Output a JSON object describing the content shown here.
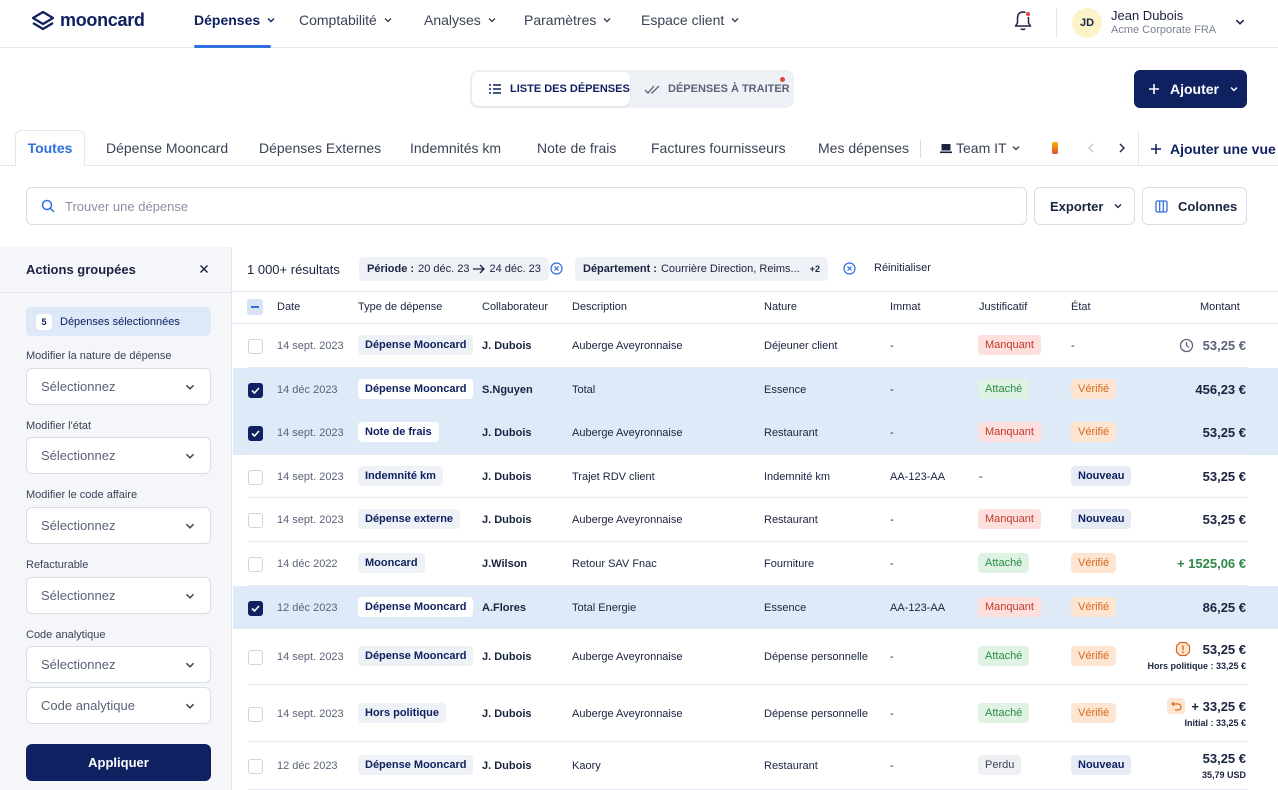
{
  "brand": {
    "name": "mooncard"
  },
  "nav": {
    "items": [
      "Dépenses",
      "Comptabilité",
      "Analyses",
      "Paramètres",
      "Espace client"
    ],
    "active": "Dépenses"
  },
  "user": {
    "initials": "JD",
    "name": "Jean Dubois",
    "company": "Acme Corporate FRA"
  },
  "view_toggle": {
    "list": "LISTE DES DÉPENSES",
    "todo": "DÉPENSES À TRAITER"
  },
  "add_button": "Ajouter",
  "tabs": [
    "Toutes",
    "Dépense Mooncard",
    "Dépenses Externes",
    "Indemnités km",
    "Note de frais",
    "Factures fournisseurs",
    "Mes dépenses",
    "Team IT"
  ],
  "add_view": "Ajouter une vue",
  "search": {
    "placeholder": "Trouver une dépense",
    "value": ""
  },
  "export_button": "Exporter",
  "columns_button": "Colonnes",
  "sidebar": {
    "title": "Actions groupées",
    "selected_count": "5",
    "selected_label": "Dépenses sélectionnées",
    "fields": [
      {
        "label": "Modifier la nature de dépense",
        "value": "Sélectionnez"
      },
      {
        "label": "Modifier l'état",
        "value": "Sélectionnez"
      },
      {
        "label": "Modifier le code affaire",
        "value": "Sélectionnez"
      },
      {
        "label": "Refacturable",
        "value": "Sélectionnez"
      },
      {
        "label": "Code analytique",
        "value": "Sélectionnez"
      }
    ],
    "extra_select": "Code analytique",
    "apply": "Appliquer"
  },
  "filters": {
    "results": "1 000+ résultats",
    "period_label": "Période :",
    "period_from": "20 déc. 23",
    "period_to": "24 déc. 23",
    "dept_label": "Département :",
    "dept_value": "Courrière Direction, Reims...",
    "dept_more": "+2",
    "reset": "Réinitialiser"
  },
  "table": {
    "headers": {
      "date": "Date",
      "type": "Type de dépense",
      "collab": "Collaborateur",
      "desc": "Description",
      "nature": "Nature",
      "immat": "Immat",
      "justif": "Justificatif",
      "etat": "État",
      "montant": "Montant"
    },
    "rows": [
      {
        "checked": false,
        "date": "14 sept. 2023",
        "type": "Dépense Mooncard",
        "collab": "J. Dubois",
        "desc": "Auberge Aveyronnaise",
        "nature": "Déjeuner client",
        "immat": "-",
        "justif": "Manquant",
        "justif_kind": "red",
        "etat": "-",
        "etat_kind": "",
        "amount": "53,25 €",
        "amount_color": "#5b6378",
        "amount_icon": "clock",
        "sub": ""
      },
      {
        "checked": true,
        "date": "14 déc 2023",
        "type": "Dépense Mooncard",
        "collab": "S.Nguyen",
        "desc": "Total",
        "nature": "Essence",
        "immat": "-",
        "justif": "Attaché",
        "justif_kind": "green",
        "etat": "Vérifié",
        "etat_kind": "orange",
        "amount": "456,23 €",
        "amount_color": "#1a2340",
        "amount_icon": "",
        "sub": ""
      },
      {
        "checked": true,
        "date": "14 sept. 2023",
        "type": "Note de frais",
        "collab": "J. Dubois",
        "desc": "Auberge Aveyronnaise",
        "nature": "Restaurant",
        "immat": "-",
        "justif": "Manquant",
        "justif_kind": "red",
        "etat": "Vérifié",
        "etat_kind": "orange",
        "amount": "53,25 €",
        "amount_color": "#1a2340",
        "amount_icon": "",
        "sub": ""
      },
      {
        "checked": false,
        "date": "14 sept. 2023",
        "type": "Indemnité km",
        "collab": "J. Dubois",
        "desc": "Trajet RDV client",
        "nature": "Indemnité km",
        "immat": "AA-123-AA",
        "justif": "-",
        "justif_kind": "",
        "etat": "Nouveau",
        "etat_kind": "navy",
        "amount": "53,25 €",
        "amount_color": "#1a2340",
        "amount_icon": "",
        "sub": ""
      },
      {
        "checked": false,
        "date": "14 sept. 2023",
        "type": "Dépense externe",
        "collab": "J. Dubois",
        "desc": "Auberge Aveyronnaise",
        "nature": "Restaurant",
        "immat": "-",
        "justif": "Manquant",
        "justif_kind": "red",
        "etat": "Nouveau",
        "etat_kind": "navy",
        "amount": "53,25 €",
        "amount_color": "#1a2340",
        "amount_icon": "",
        "sub": ""
      },
      {
        "checked": false,
        "date": "14 déc 2022",
        "type": "Mooncard",
        "collab": "J.Wilson",
        "desc": "Retour SAV Fnac",
        "nature": "Fourniture",
        "immat": "-",
        "justif": "Attaché",
        "justif_kind": "green",
        "etat": "Vérifié",
        "etat_kind": "orange",
        "amount": "+ 1525,06 €",
        "amount_color": "#2e8b47",
        "amount_icon": "",
        "sub": ""
      },
      {
        "checked": true,
        "date": "12 déc 2023",
        "type": "Dépense Mooncard",
        "collab": "A.Flores",
        "desc": "Total Energie",
        "nature": "Essence",
        "immat": "AA-123-AA",
        "justif": "Manquant",
        "justif_kind": "red",
        "etat": "Vérifié",
        "etat_kind": "orange",
        "amount": "86,25 €",
        "amount_color": "#1a2340",
        "amount_icon": "",
        "sub": ""
      },
      {
        "checked": false,
        "date": "14 sept. 2023",
        "type": "Dépense Mooncard",
        "collab": "J. Dubois",
        "desc": "Auberge Aveyronnaise",
        "nature": "Dépense personnelle",
        "immat": "-",
        "justif": "Attaché",
        "justif_kind": "green",
        "etat": "Vérifié",
        "etat_kind": "orange",
        "amount": "53,25 €",
        "amount_color": "#1a2340",
        "amount_icon": "alert",
        "sub": "Hors politique : 33,25 €"
      },
      {
        "checked": false,
        "date": "14 sept. 2023",
        "type": "Hors politique",
        "collab": "J. Dubois",
        "desc": "Auberge Aveyronnaise",
        "nature": "Dépense personnelle",
        "immat": "-",
        "justif": "Attaché",
        "justif_kind": "green",
        "etat": "Vérifié",
        "etat_kind": "orange",
        "amount": "+ 33,25 €",
        "amount_color": "#1a2340",
        "amount_icon": "refund",
        "sub": "Initial : 33,25 €"
      },
      {
        "checked": false,
        "date": "12 déc 2023",
        "type": "Dépense Mooncard",
        "collab": "J. Dubois",
        "desc": "Kaory",
        "nature": "Restaurant",
        "immat": "-",
        "justif": "Perdu",
        "justif_kind": "grey",
        "etat": "Nouveau",
        "etat_kind": "navy",
        "amount": "53,25 €",
        "amount_color": "#1a2340",
        "amount_icon": "",
        "sub": "35,79 USD"
      }
    ]
  },
  "colors": {
    "navy": "#0f2160",
    "accent": "#2f6fde",
    "danger": "#e0483b",
    "success": "#2e8b47",
    "warning": "#d6681e"
  }
}
